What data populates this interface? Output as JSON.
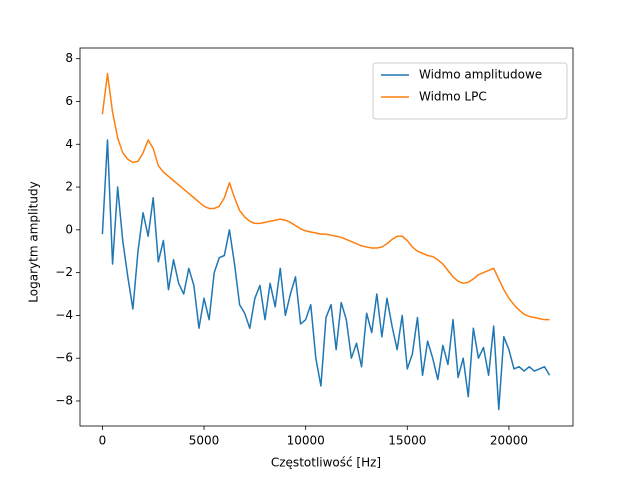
{
  "chart_data": {
    "type": "line",
    "xlabel": "Częstotliwość [Hz]",
    "ylabel": "Logarytm amplitudy",
    "x": [
      0,
      250,
      500,
      750,
      1000,
      1250,
      1500,
      1750,
      2000,
      2250,
      2500,
      2750,
      3000,
      3250,
      3500,
      3750,
      4000,
      4250,
      4500,
      4750,
      5000,
      5250,
      5500,
      5750,
      6000,
      6250,
      6500,
      6750,
      7000,
      7250,
      7500,
      7750,
      8000,
      8250,
      8500,
      8750,
      9000,
      9250,
      9500,
      9750,
      10000,
      10250,
      10500,
      10750,
      11000,
      11250,
      11500,
      11750,
      12000,
      12250,
      12500,
      12750,
      13000,
      13250,
      13500,
      13750,
      14000,
      14250,
      14500,
      14750,
      15000,
      15250,
      15500,
      15750,
      16000,
      16250,
      16500,
      16750,
      17000,
      17250,
      17500,
      17750,
      18000,
      18250,
      18500,
      18750,
      19000,
      19250,
      19500,
      19750,
      20000,
      20250,
      20500,
      20750,
      21000,
      21250,
      21500,
      21750,
      22000
    ],
    "series": [
      {
        "name": "Widmo amplitudowe",
        "color": "#1f77b4",
        "values": [
          -0.2,
          4.2,
          -1.6,
          2.0,
          -0.5,
          -2.2,
          -3.7,
          -1.0,
          0.8,
          -0.3,
          1.5,
          -1.5,
          -0.5,
          -2.8,
          -1.4,
          -2.5,
          -3.0,
          -1.8,
          -2.6,
          -4.6,
          -3.2,
          -4.2,
          -2.0,
          -1.3,
          -1.2,
          0.0,
          -1.6,
          -3.5,
          -3.9,
          -4.6,
          -3.2,
          -2.6,
          -4.2,
          -2.5,
          -3.6,
          -1.8,
          -4.0,
          -3.0,
          -2.2,
          -4.4,
          -4.2,
          -3.5,
          -6.0,
          -7.3,
          -4.1,
          -3.5,
          -5.6,
          -3.4,
          -4.2,
          -6.0,
          -5.3,
          -6.4,
          -3.9,
          -4.8,
          -3.0,
          -5.0,
          -3.2,
          -4.5,
          -5.6,
          -4.0,
          -6.5,
          -5.8,
          -4.1,
          -6.8,
          -5.2,
          -6.0,
          -7.0,
          -5.4,
          -6.3,
          -4.2,
          -6.9,
          -6.0,
          -7.8,
          -4.6,
          -6.0,
          -5.5,
          -6.8,
          -4.5,
          -8.4,
          -5.0,
          -5.6,
          -6.5,
          -6.4,
          -6.6,
          -6.4,
          -6.6,
          -6.5,
          -6.4,
          -6.8
        ]
      },
      {
        "name": "Widmo LPC",
        "color": "#ff7f0e",
        "values": [
          5.4,
          7.3,
          5.5,
          4.3,
          3.6,
          3.3,
          3.15,
          3.2,
          3.6,
          4.2,
          3.8,
          3.0,
          2.7,
          2.5,
          2.3,
          2.1,
          1.9,
          1.7,
          1.5,
          1.3,
          1.1,
          1.0,
          1.0,
          1.1,
          1.5,
          2.2,
          1.5,
          0.9,
          0.6,
          0.4,
          0.3,
          0.3,
          0.35,
          0.4,
          0.45,
          0.5,
          0.45,
          0.35,
          0.2,
          0.05,
          -0.05,
          -0.1,
          -0.15,
          -0.2,
          -0.2,
          -0.25,
          -0.3,
          -0.35,
          -0.45,
          -0.55,
          -0.65,
          -0.75,
          -0.8,
          -0.85,
          -0.85,
          -0.8,
          -0.65,
          -0.45,
          -0.3,
          -0.3,
          -0.5,
          -0.8,
          -1.0,
          -1.1,
          -1.2,
          -1.25,
          -1.4,
          -1.6,
          -1.9,
          -2.2,
          -2.4,
          -2.5,
          -2.45,
          -2.3,
          -2.1,
          -2.0,
          -1.9,
          -1.8,
          -2.3,
          -2.8,
          -3.2,
          -3.5,
          -3.75,
          -3.95,
          -4.05,
          -4.1,
          -4.15,
          -4.2,
          -4.2
        ]
      }
    ],
    "xlim": [
      -1102.5,
      23152.5
    ],
    "xticks": [
      0,
      5000,
      10000,
      15000,
      20000
    ],
    "ylim": [
      -9.17,
      8.5
    ],
    "yticks": [
      {
        "value": -8,
        "label": "−8"
      },
      {
        "value": -6,
        "label": "−6"
      },
      {
        "value": -4,
        "label": "−4"
      },
      {
        "value": -2,
        "label": "−2"
      },
      0,
      2,
      4,
      6,
      8
    ],
    "grid": false,
    "legend": "upper right"
  }
}
